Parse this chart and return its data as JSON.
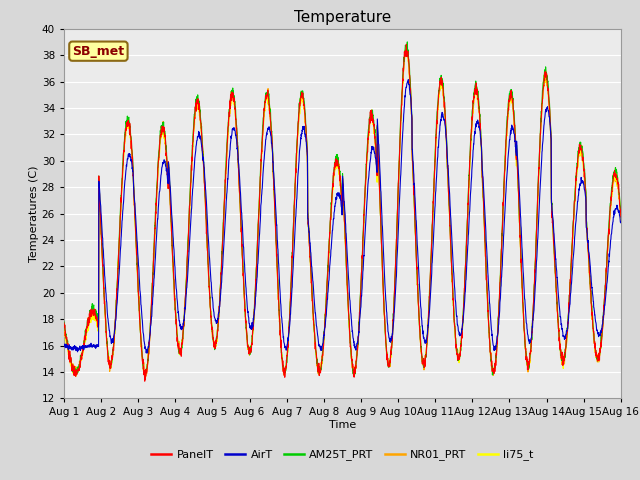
{
  "title": "Temperature",
  "xlabel": "Time",
  "ylabel": "Temperatures (C)",
  "ylim": [
    12,
    40
  ],
  "yticks": [
    12,
    14,
    16,
    18,
    20,
    22,
    24,
    26,
    28,
    30,
    32,
    34,
    36,
    38,
    40
  ],
  "num_days": 16,
  "annotation_text": "SB_met",
  "series_colors": {
    "PanelT": "#FF0000",
    "AirT": "#0000CC",
    "AM25T_PRT": "#00CC00",
    "NR01_PRT": "#FFA500",
    "li75_t": "#FFFF00"
  },
  "background_color": "#D8D8D8",
  "plot_bg_color": "#EBEBEB",
  "grid_color": "#FFFFFF",
  "title_fontsize": 11,
  "label_fontsize": 8,
  "tick_fontsize": 7.5,
  "legend_fontsize": 8,
  "day_maxs": [
    18.5,
    33.0,
    32.5,
    34.5,
    35.0,
    35.0,
    35.0,
    30.0,
    33.5,
    38.5,
    36.0,
    35.5,
    35.0,
    36.5,
    31.0,
    29.0
  ],
  "day_mins": [
    14.0,
    14.5,
    13.8,
    15.5,
    16.0,
    15.5,
    14.0,
    14.0,
    14.0,
    14.5,
    14.5,
    15.0,
    14.0,
    14.5,
    14.8,
    15.0
  ],
  "samples_per_day": 144
}
